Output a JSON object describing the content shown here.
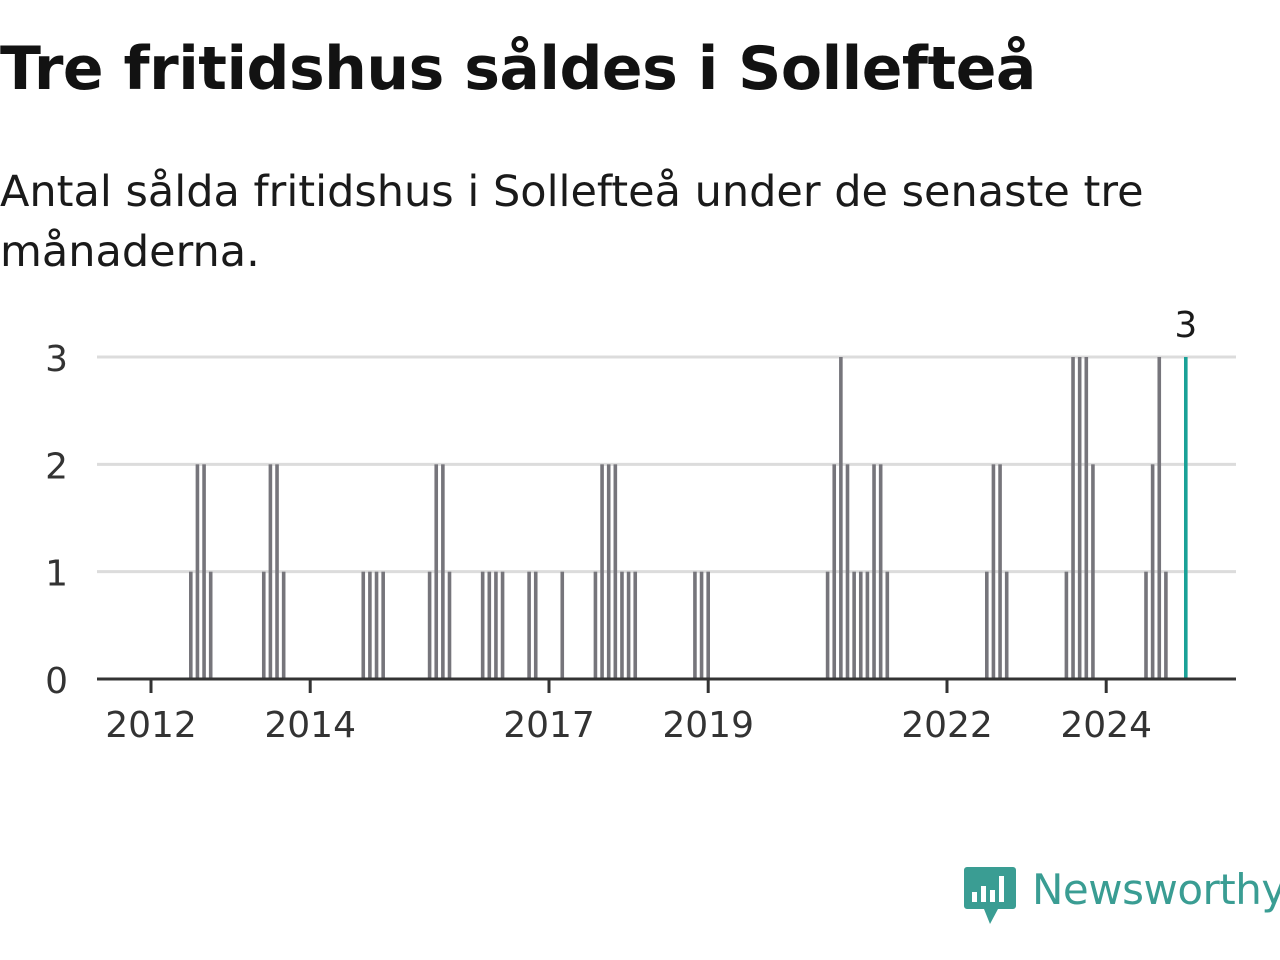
{
  "header": {
    "title": "Tre fritidshus såldes i Sollefteå",
    "subtitle": "Antal sålda fritidshus i Sollefteå under de senaste tre månaderna."
  },
  "brand": {
    "name": "Newsworthy",
    "color": "#3a9d93"
  },
  "chart_data": {
    "type": "bar",
    "title": "Tre fritidshus såldes i Sollefteå",
    "subtitle": "Antal sålda fritidshus i Sollefteå under de senaste tre månaderna.",
    "xlabel": "",
    "ylabel": "",
    "ylim": [
      0,
      3
    ],
    "yticks": [
      0,
      1,
      2,
      3
    ],
    "xticks": [
      "2012",
      "2014",
      "2017",
      "2019",
      "2022",
      "2024"
    ],
    "grid": true,
    "bar_color": "#76757b",
    "highlight_color": "#1aa197",
    "highlight_label": "3",
    "series": [
      {
        "name": "",
        "points": [
          {
            "x": "2012-07",
            "y": 1
          },
          {
            "x": "2012-08",
            "y": 2
          },
          {
            "x": "2012-09",
            "y": 2
          },
          {
            "x": "2012-10",
            "y": 1
          },
          {
            "x": "2013-06",
            "y": 1
          },
          {
            "x": "2013-07",
            "y": 2
          },
          {
            "x": "2013-08",
            "y": 2
          },
          {
            "x": "2013-09",
            "y": 1
          },
          {
            "x": "2014-09",
            "y": 1
          },
          {
            "x": "2014-10",
            "y": 1
          },
          {
            "x": "2014-11",
            "y": 1
          },
          {
            "x": "2014-12",
            "y": 1
          },
          {
            "x": "2015-07",
            "y": 1
          },
          {
            "x": "2015-08",
            "y": 2
          },
          {
            "x": "2015-09",
            "y": 2
          },
          {
            "x": "2015-10",
            "y": 1
          },
          {
            "x": "2016-03",
            "y": 1
          },
          {
            "x": "2016-04",
            "y": 1
          },
          {
            "x": "2016-05",
            "y": 1
          },
          {
            "x": "2016-06",
            "y": 1
          },
          {
            "x": "2016-10",
            "y": 1
          },
          {
            "x": "2016-11",
            "y": 1
          },
          {
            "x": "2017-03",
            "y": 1
          },
          {
            "x": "2017-08",
            "y": 1
          },
          {
            "x": "2017-09",
            "y": 2
          },
          {
            "x": "2017-10",
            "y": 2
          },
          {
            "x": "2017-11",
            "y": 2
          },
          {
            "x": "2017-12",
            "y": 1
          },
          {
            "x": "2018-01",
            "y": 1
          },
          {
            "x": "2018-02",
            "y": 1
          },
          {
            "x": "2018-11",
            "y": 1
          },
          {
            "x": "2018-12",
            "y": 1
          },
          {
            "x": "2019-01",
            "y": 1
          },
          {
            "x": "2020-07",
            "y": 1
          },
          {
            "x": "2020-08",
            "y": 2
          },
          {
            "x": "2020-09",
            "y": 3
          },
          {
            "x": "2020-10",
            "y": 2
          },
          {
            "x": "2020-11",
            "y": 1
          },
          {
            "x": "2020-12",
            "y": 1
          },
          {
            "x": "2021-01",
            "y": 1
          },
          {
            "x": "2021-02",
            "y": 2
          },
          {
            "x": "2021-03",
            "y": 2
          },
          {
            "x": "2021-04",
            "y": 1
          },
          {
            "x": "2022-07",
            "y": 1
          },
          {
            "x": "2022-08",
            "y": 2
          },
          {
            "x": "2022-09",
            "y": 2
          },
          {
            "x": "2022-10",
            "y": 1
          },
          {
            "x": "2023-07",
            "y": 1
          },
          {
            "x": "2023-08",
            "y": 3
          },
          {
            "x": "2023-09",
            "y": 3
          },
          {
            "x": "2023-10",
            "y": 3
          },
          {
            "x": "2023-11",
            "y": 2
          },
          {
            "x": "2024-07",
            "y": 1
          },
          {
            "x": "2024-08",
            "y": 2
          },
          {
            "x": "2024-09",
            "y": 3
          },
          {
            "x": "2024-10",
            "y": 1
          },
          {
            "x": "2025-01",
            "y": 3,
            "highlight": true
          }
        ]
      }
    ]
  }
}
